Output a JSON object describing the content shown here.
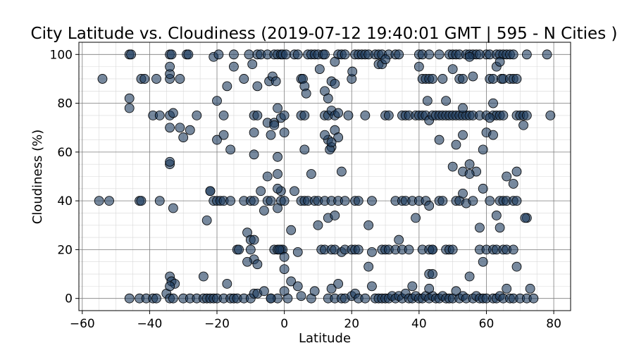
{
  "chart_data": {
    "type": "scatter",
    "title": "City Latitude vs. Cloudiness (2019-07-12 19:40:01 GMT | 595 - N Cities )",
    "xlabel": "Latitude",
    "ylabel": "Cloudiness (%)",
    "xlim": [
      -61,
      85
    ],
    "ylim": [
      -5,
      105
    ],
    "xticks": [
      -60,
      -40,
      -20,
      0,
      20,
      40,
      60,
      80
    ],
    "yticks": [
      0,
      20,
      40,
      60,
      80,
      100
    ],
    "x_minor_step": 5,
    "y_minor_step": 5,
    "grid": true,
    "marker_color": "#1c3a5e",
    "marker_opacity": 0.6,
    "points": [
      [
        -46,
        100
      ],
      [
        -45.5,
        100
      ],
      [
        -29,
        100
      ],
      [
        -28.5,
        100
      ],
      [
        -21,
        99
      ],
      [
        -19.5,
        100
      ],
      [
        -15,
        100
      ],
      [
        -10.5,
        100
      ],
      [
        -8,
        100
      ],
      [
        -7,
        100
      ],
      [
        -5,
        100
      ],
      [
        -3,
        100
      ],
      [
        -2,
        100
      ],
      [
        -1,
        100
      ],
      [
        -0.5,
        100
      ],
      [
        0.5,
        100
      ],
      [
        3,
        100
      ],
      [
        4,
        100
      ],
      [
        7,
        100
      ],
      [
        8,
        100
      ],
      [
        9,
        100
      ],
      [
        10,
        100
      ],
      [
        11.5,
        100
      ],
      [
        12,
        100
      ],
      [
        16,
        100
      ],
      [
        17,
        100
      ],
      [
        18,
        100
      ],
      [
        21,
        100
      ],
      [
        22,
        100
      ],
      [
        23,
        100
      ],
      [
        24,
        100
      ],
      [
        25,
        100
      ],
      [
        27,
        100
      ],
      [
        28,
        100
      ],
      [
        29,
        100
      ],
      [
        31,
        100
      ],
      [
        33,
        100
      ],
      [
        34,
        100
      ],
      [
        40,
        100
      ],
      [
        41,
        100
      ],
      [
        43,
        100
      ],
      [
        46,
        100
      ],
      [
        49,
        100
      ],
      [
        50,
        100
      ],
      [
        51,
        100
      ],
      [
        52,
        100
      ],
      [
        54,
        100
      ],
      [
        55,
        100
      ],
      [
        56,
        100
      ],
      [
        57,
        100
      ],
      [
        60,
        100
      ],
      [
        61,
        100
      ],
      [
        63,
        100
      ],
      [
        64,
        100
      ],
      [
        65,
        100
      ],
      [
        66,
        100
      ],
      [
        67,
        100
      ],
      [
        68,
        100
      ],
      [
        72,
        100
      ],
      [
        78,
        100
      ],
      [
        -34,
        100
      ],
      [
        -33.5,
        100
      ],
      [
        -54,
        90
      ],
      [
        -42.5,
        90
      ],
      [
        -41.5,
        90
      ],
      [
        -38,
        90
      ],
      [
        -34,
        90
      ],
      [
        -31,
        90
      ],
      [
        -12,
        90
      ],
      [
        -9.5,
        96
      ],
      [
        -8,
        87
      ],
      [
        -4.5,
        89
      ],
      [
        -3.5,
        91
      ],
      [
        -2.5,
        89
      ],
      [
        5,
        90
      ],
      [
        5.5,
        90
      ],
      [
        6,
        87
      ],
      [
        6.5,
        84
      ],
      [
        10.5,
        94
      ],
      [
        12,
        85
      ],
      [
        13,
        82
      ],
      [
        14,
        89
      ],
      [
        15,
        88
      ],
      [
        20,
        90
      ],
      [
        20.2,
        93
      ],
      [
        28,
        96
      ],
      [
        29,
        96
      ],
      [
        30,
        98
      ],
      [
        40,
        95
      ],
      [
        41,
        90
      ],
      [
        42,
        90
      ],
      [
        43,
        90
      ],
      [
        44,
        90
      ],
      [
        47,
        90
      ],
      [
        50,
        94
      ],
      [
        52,
        90
      ],
      [
        53,
        90
      ],
      [
        55,
        99
      ],
      [
        56,
        91
      ],
      [
        58,
        100
      ],
      [
        61,
        90
      ],
      [
        62,
        90
      ],
      [
        63,
        95
      ],
      [
        64,
        97
      ],
      [
        64.5,
        90
      ],
      [
        65,
        90
      ],
      [
        67,
        90
      ],
      [
        68,
        90
      ],
      [
        69,
        90
      ],
      [
        -34,
        92
      ],
      [
        -34,
        95
      ],
      [
        15,
        97
      ],
      [
        -46,
        82
      ],
      [
        -46,
        78
      ],
      [
        -39,
        75
      ],
      [
        -37,
        75
      ],
      [
        -34,
        75
      ],
      [
        -33,
        76
      ],
      [
        -26,
        75
      ],
      [
        -20,
        81
      ],
      [
        -18,
        75
      ],
      [
        -17,
        87
      ],
      [
        -15,
        95
      ],
      [
        -9,
        75
      ],
      [
        -8,
        75
      ],
      [
        -5,
        72
      ],
      [
        -3,
        72
      ],
      [
        -2,
        78
      ],
      [
        -1,
        74
      ],
      [
        0,
        75
      ],
      [
        5,
        75
      ],
      [
        6,
        75
      ],
      [
        12,
        75
      ],
      [
        13,
        75
      ],
      [
        14,
        77
      ],
      [
        15,
        75
      ],
      [
        16,
        76
      ],
      [
        19,
        75
      ],
      [
        24,
        75
      ],
      [
        30,
        75
      ],
      [
        31,
        75
      ],
      [
        35,
        75
      ],
      [
        36,
        75
      ],
      [
        37,
        75
      ],
      [
        39,
        75
      ],
      [
        40,
        75
      ],
      [
        41,
        75
      ],
      [
        42,
        75
      ],
      [
        43,
        73
      ],
      [
        44,
        75
      ],
      [
        45,
        75
      ],
      [
        46,
        75
      ],
      [
        47,
        75
      ],
      [
        48,
        75
      ],
      [
        49,
        75
      ],
      [
        50,
        75
      ],
      [
        51,
        75
      ],
      [
        52,
        75
      ],
      [
        53,
        75
      ],
      [
        54,
        75
      ],
      [
        55,
        75
      ],
      [
        56,
        75
      ],
      [
        58,
        75
      ],
      [
        60,
        75
      ],
      [
        62,
        75
      ],
      [
        63,
        75
      ],
      [
        64,
        75
      ],
      [
        65,
        75
      ],
      [
        69,
        75
      ],
      [
        70,
        75
      ],
      [
        71,
        75
      ],
      [
        72,
        75
      ],
      [
        79,
        75
      ],
      [
        42.5,
        81
      ],
      [
        48,
        81
      ],
      [
        53,
        78
      ],
      [
        62,
        80
      ],
      [
        71,
        71
      ],
      [
        -34,
        70
      ],
      [
        -31,
        70
      ],
      [
        -28,
        69
      ],
      [
        -30,
        66
      ],
      [
        -20,
        65
      ],
      [
        -18,
        67
      ],
      [
        -16,
        61
      ],
      [
        -9,
        68
      ],
      [
        -4,
        67
      ],
      [
        -3,
        71
      ],
      [
        0,
        68
      ],
      [
        6,
        61
      ],
      [
        8,
        51
      ],
      [
        13,
        65
      ],
      [
        14,
        62
      ],
      [
        15,
        69
      ],
      [
        16,
        66
      ],
      [
        12,
        67
      ],
      [
        13.5,
        61
      ],
      [
        14,
        64
      ],
      [
        17,
        52
      ],
      [
        46,
        65
      ],
      [
        51,
        63
      ],
      [
        53,
        67
      ],
      [
        55,
        55
      ],
      [
        57,
        52
      ],
      [
        59,
        61
      ],
      [
        60,
        68
      ],
      [
        61,
        74
      ],
      [
        62,
        67
      ],
      [
        66,
        50
      ],
      [
        68,
        47
      ],
      [
        69,
        52
      ],
      [
        -34,
        55
      ],
      [
        -34,
        56
      ],
      [
        -9,
        59
      ],
      [
        -5,
        50
      ],
      [
        -2,
        58
      ],
      [
        -1,
        44
      ],
      [
        -2,
        51
      ],
      [
        2,
        28
      ],
      [
        -55,
        40
      ],
      [
        -52,
        40
      ],
      [
        -43,
        40
      ],
      [
        -42.5,
        40
      ],
      [
        -37,
        40
      ],
      [
        -22,
        44
      ],
      [
        -21,
        40
      ],
      [
        -20,
        40
      ],
      [
        -19,
        40
      ],
      [
        -18,
        40
      ],
      [
        -16,
        40
      ],
      [
        -12,
        40
      ],
      [
        -10,
        40
      ],
      [
        -9,
        40
      ],
      [
        -7,
        44
      ],
      [
        -6,
        36
      ],
      [
        -5,
        40
      ],
      [
        -4,
        40
      ],
      [
        -2,
        45
      ],
      [
        -1,
        40
      ],
      [
        0,
        40
      ],
      [
        3,
        44
      ],
      [
        5,
        40
      ],
      [
        6,
        40
      ],
      [
        7,
        40
      ],
      [
        9,
        40
      ],
      [
        10,
        40
      ],
      [
        12,
        40
      ],
      [
        14,
        40
      ],
      [
        16,
        40
      ],
      [
        18,
        40
      ],
      [
        21,
        40
      ],
      [
        22,
        40
      ],
      [
        26,
        40
      ],
      [
        33,
        40
      ],
      [
        35,
        40
      ],
      [
        36,
        40
      ],
      [
        38,
        40
      ],
      [
        40,
        40
      ],
      [
        42,
        40
      ],
      [
        43,
        38
      ],
      [
        46,
        40
      ],
      [
        47,
        40
      ],
      [
        51,
        40
      ],
      [
        52,
        40
      ],
      [
        53,
        43
      ],
      [
        54,
        39
      ],
      [
        56,
        40
      ],
      [
        58,
        29
      ],
      [
        59,
        45
      ],
      [
        61,
        40
      ],
      [
        63,
        34
      ],
      [
        64,
        40
      ],
      [
        65,
        40
      ],
      [
        66,
        40
      ],
      [
        68,
        40
      ],
      [
        69,
        40
      ],
      [
        72,
        33
      ],
      [
        71.5,
        33
      ],
      [
        -33,
        37
      ],
      [
        -23,
        32
      ],
      [
        -11,
        27
      ],
      [
        -10,
        24
      ],
      [
        -9,
        24
      ],
      [
        -2,
        37
      ],
      [
        4,
        19
      ],
      [
        10,
        30
      ],
      [
        13,
        33
      ],
      [
        15,
        34
      ],
      [
        25,
        30
      ],
      [
        34,
        24
      ],
      [
        39,
        33
      ],
      [
        44,
        20
      ],
      [
        50,
        54
      ],
      [
        53,
        52
      ],
      [
        55,
        51
      ],
      [
        64,
        29
      ],
      [
        -14,
        20
      ],
      [
        -13.5,
        20
      ],
      [
        -10,
        20
      ],
      [
        -9,
        16
      ],
      [
        -8,
        14
      ],
      [
        -11,
        15
      ],
      [
        -3,
        20
      ],
      [
        -2,
        20
      ],
      [
        -1,
        20
      ],
      [
        -0.5,
        20
      ],
      [
        -1.5,
        20
      ],
      [
        0,
        12
      ],
      [
        0,
        17
      ],
      [
        11,
        20
      ],
      [
        12,
        20
      ],
      [
        14,
        20
      ],
      [
        15,
        20
      ],
      [
        17,
        19
      ],
      [
        18,
        20
      ],
      [
        20,
        20
      ],
      [
        21,
        20
      ],
      [
        22,
        20
      ],
      [
        26,
        19
      ],
      [
        29,
        20
      ],
      [
        30,
        20
      ],
      [
        31,
        20
      ],
      [
        33,
        20
      ],
      [
        35,
        20
      ],
      [
        37,
        20
      ],
      [
        41,
        20
      ],
      [
        43,
        20
      ],
      [
        44,
        20
      ],
      [
        48,
        20
      ],
      [
        49,
        20
      ],
      [
        50,
        20
      ],
      [
        58,
        20
      ],
      [
        60,
        20
      ],
      [
        62,
        20
      ],
      [
        63,
        20
      ],
      [
        65,
        20
      ],
      [
        66,
        20
      ],
      [
        68,
        20
      ],
      [
        69,
        13
      ],
      [
        59,
        15
      ],
      [
        25,
        13
      ],
      [
        -46,
        0
      ],
      [
        -43,
        0
      ],
      [
        -41,
        0
      ],
      [
        -39,
        0
      ],
      [
        -38,
        0
      ],
      [
        -35,
        2
      ],
      [
        -34,
        0
      ],
      [
        -33,
        0
      ],
      [
        -30,
        0
      ],
      [
        -28,
        0
      ],
      [
        -26,
        0
      ],
      [
        -24,
        0
      ],
      [
        -23,
        0
      ],
      [
        -22,
        0
      ],
      [
        -21,
        0
      ],
      [
        -20,
        0
      ],
      [
        -18,
        0
      ],
      [
        -16,
        0
      ],
      [
        -15,
        0
      ],
      [
        -14,
        0
      ],
      [
        -12,
        0
      ],
      [
        -10,
        0
      ],
      [
        -9,
        2
      ],
      [
        -8,
        2
      ],
      [
        -6,
        3
      ],
      [
        -4,
        0
      ],
      [
        -2,
        0
      ],
      [
        0,
        3
      ],
      [
        1,
        0
      ],
      [
        2,
        7
      ],
      [
        4,
        5
      ],
      [
        5,
        1
      ],
      [
        8,
        0
      ],
      [
        9,
        3
      ],
      [
        13,
        0
      ],
      [
        14,
        4
      ],
      [
        15,
        0
      ],
      [
        16,
        6
      ],
      [
        17,
        0
      ],
      [
        18,
        0
      ],
      [
        20,
        1
      ],
      [
        21,
        2
      ],
      [
        22,
        0
      ],
      [
        24,
        0
      ],
      [
        26,
        5
      ],
      [
        27,
        0
      ],
      [
        28,
        0
      ],
      [
        29,
        0
      ],
      [
        30,
        0
      ],
      [
        31,
        0
      ],
      [
        32,
        1
      ],
      [
        33,
        0
      ],
      [
        34,
        1
      ],
      [
        35,
        0
      ],
      [
        36,
        2
      ],
      [
        37,
        0
      ],
      [
        38,
        0
      ],
      [
        39,
        1
      ],
      [
        40,
        0
      ],
      [
        41,
        0
      ],
      [
        42,
        1
      ],
      [
        43,
        0
      ],
      [
        44,
        1
      ],
      [
        45,
        0
      ],
      [
        46,
        0
      ],
      [
        47,
        1
      ],
      [
        48,
        0
      ],
      [
        49,
        0
      ],
      [
        50,
        0
      ],
      [
        51,
        3
      ],
      [
        52,
        0
      ],
      [
        53,
        1
      ],
      [
        54,
        0
      ],
      [
        55,
        9
      ],
      [
        56,
        0
      ],
      [
        57,
        1
      ],
      [
        58,
        0
      ],
      [
        59,
        0
      ],
      [
        60,
        0
      ],
      [
        62,
        0
      ],
      [
        63,
        0
      ],
      [
        64,
        1
      ],
      [
        65,
        0
      ],
      [
        66,
        4
      ],
      [
        67,
        0
      ],
      [
        68,
        0
      ],
      [
        70,
        0
      ],
      [
        72,
        0
      ],
      [
        73,
        4
      ],
      [
        74,
        0
      ],
      [
        -34,
        9
      ],
      [
        -33.5,
        7
      ],
      [
        -32.5,
        6
      ],
      [
        -34,
        5
      ],
      [
        -24,
        9
      ],
      [
        -17,
        6
      ],
      [
        -4,
        0
      ],
      [
        38,
        5
      ],
      [
        43,
        10
      ],
      [
        44,
        10
      ],
      [
        43,
        4
      ],
      [
        -22,
        44
      ]
    ]
  }
}
